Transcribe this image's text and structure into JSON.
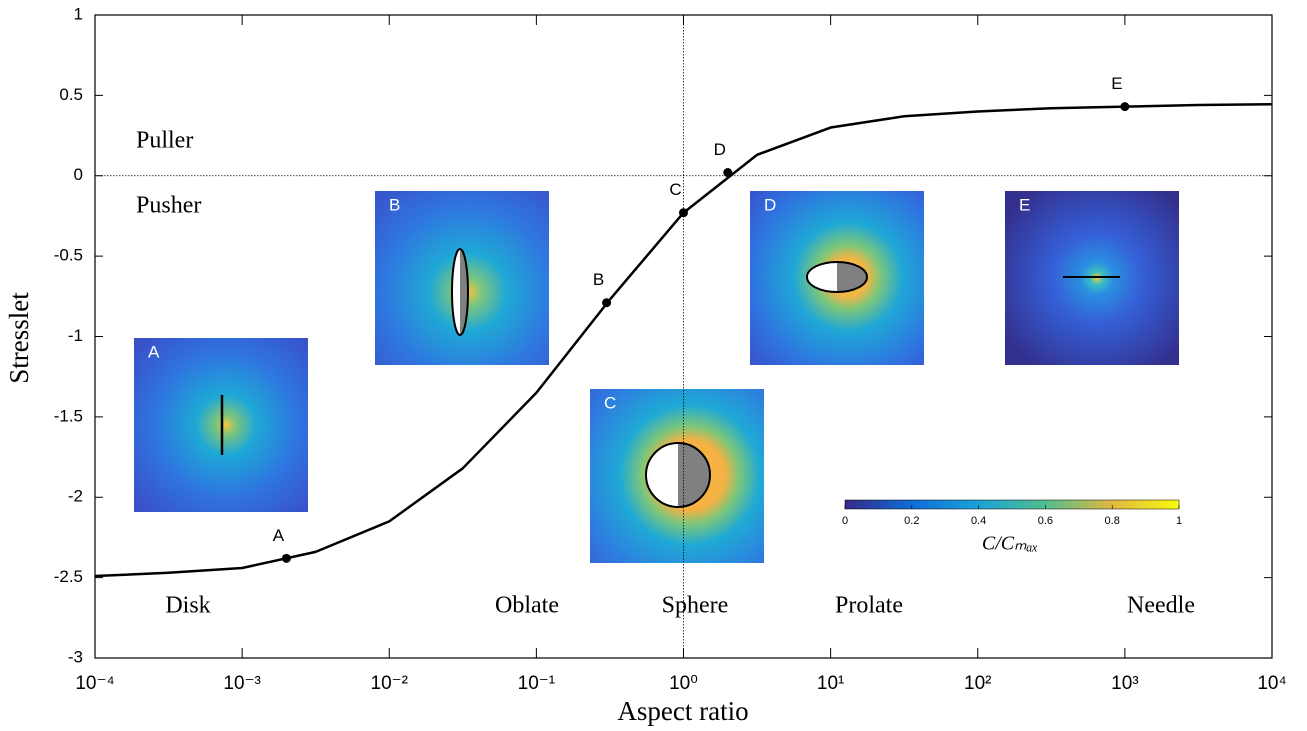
{
  "chart_data": {
    "type": "line",
    "xlabel": "Aspect ratio",
    "ylabel": "Stresslet",
    "xscale": "log",
    "xlim": [
      0.0001,
      10000
    ],
    "ylim": [
      -3,
      1
    ],
    "xticks": [
      {
        "value": 0.0001,
        "label": "10⁻⁴"
      },
      {
        "value": 0.001,
        "label": "10⁻³"
      },
      {
        "value": 0.01,
        "label": "10⁻²"
      },
      {
        "value": 0.1,
        "label": "10⁻¹"
      },
      {
        "value": 1,
        "label": "10⁰"
      },
      {
        "value": 10,
        "label": "10¹"
      },
      {
        "value": 100,
        "label": "10²"
      },
      {
        "value": 1000,
        "label": "10³"
      },
      {
        "value": 10000,
        "label": "10⁴"
      }
    ],
    "yticks": [
      1,
      0.5,
      0,
      -0.5,
      -1,
      -1.5,
      -2,
      -2.5,
      -3
    ],
    "reference_lines": {
      "y": [
        0
      ],
      "x": [
        1
      ]
    },
    "series": [
      {
        "color": "#000000",
        "x": [
          0.0001,
          0.000316,
          0.001,
          0.00316,
          0.01,
          0.0316,
          0.1,
          0.316,
          1,
          3.16,
          10,
          31.6,
          100,
          316,
          1000,
          3160,
          10000
        ],
        "values": [
          -2.49,
          -2.47,
          -2.44,
          -2.34,
          -2.15,
          -1.82,
          -1.35,
          -0.77,
          -0.23,
          0.13,
          0.3,
          0.37,
          0.4,
          0.42,
          0.43,
          0.44,
          0.445
        ]
      },
      {
        "color": "#000000",
        "markers": true,
        "x": [
          0.002,
          0.3,
          1,
          2,
          1000
        ],
        "values": [
          -2.38,
          -0.79,
          -0.23,
          0.02,
          0.43
        ],
        "point_labels": [
          "A",
          "B",
          "C",
          "D",
          "E"
        ]
      }
    ],
    "annotations": [
      "Puller",
      "Pusher",
      "Disk",
      "Oblate",
      "Sphere",
      "Prolate",
      "Needle"
    ],
    "insets": [
      "A",
      "B",
      "C",
      "D",
      "E"
    ],
    "colorbar": {
      "label": "C/Cₘₐₓ",
      "ticks": [
        0,
        0.2,
        0.4,
        0.6,
        0.8,
        1
      ],
      "lim": [
        0,
        1
      ]
    }
  }
}
